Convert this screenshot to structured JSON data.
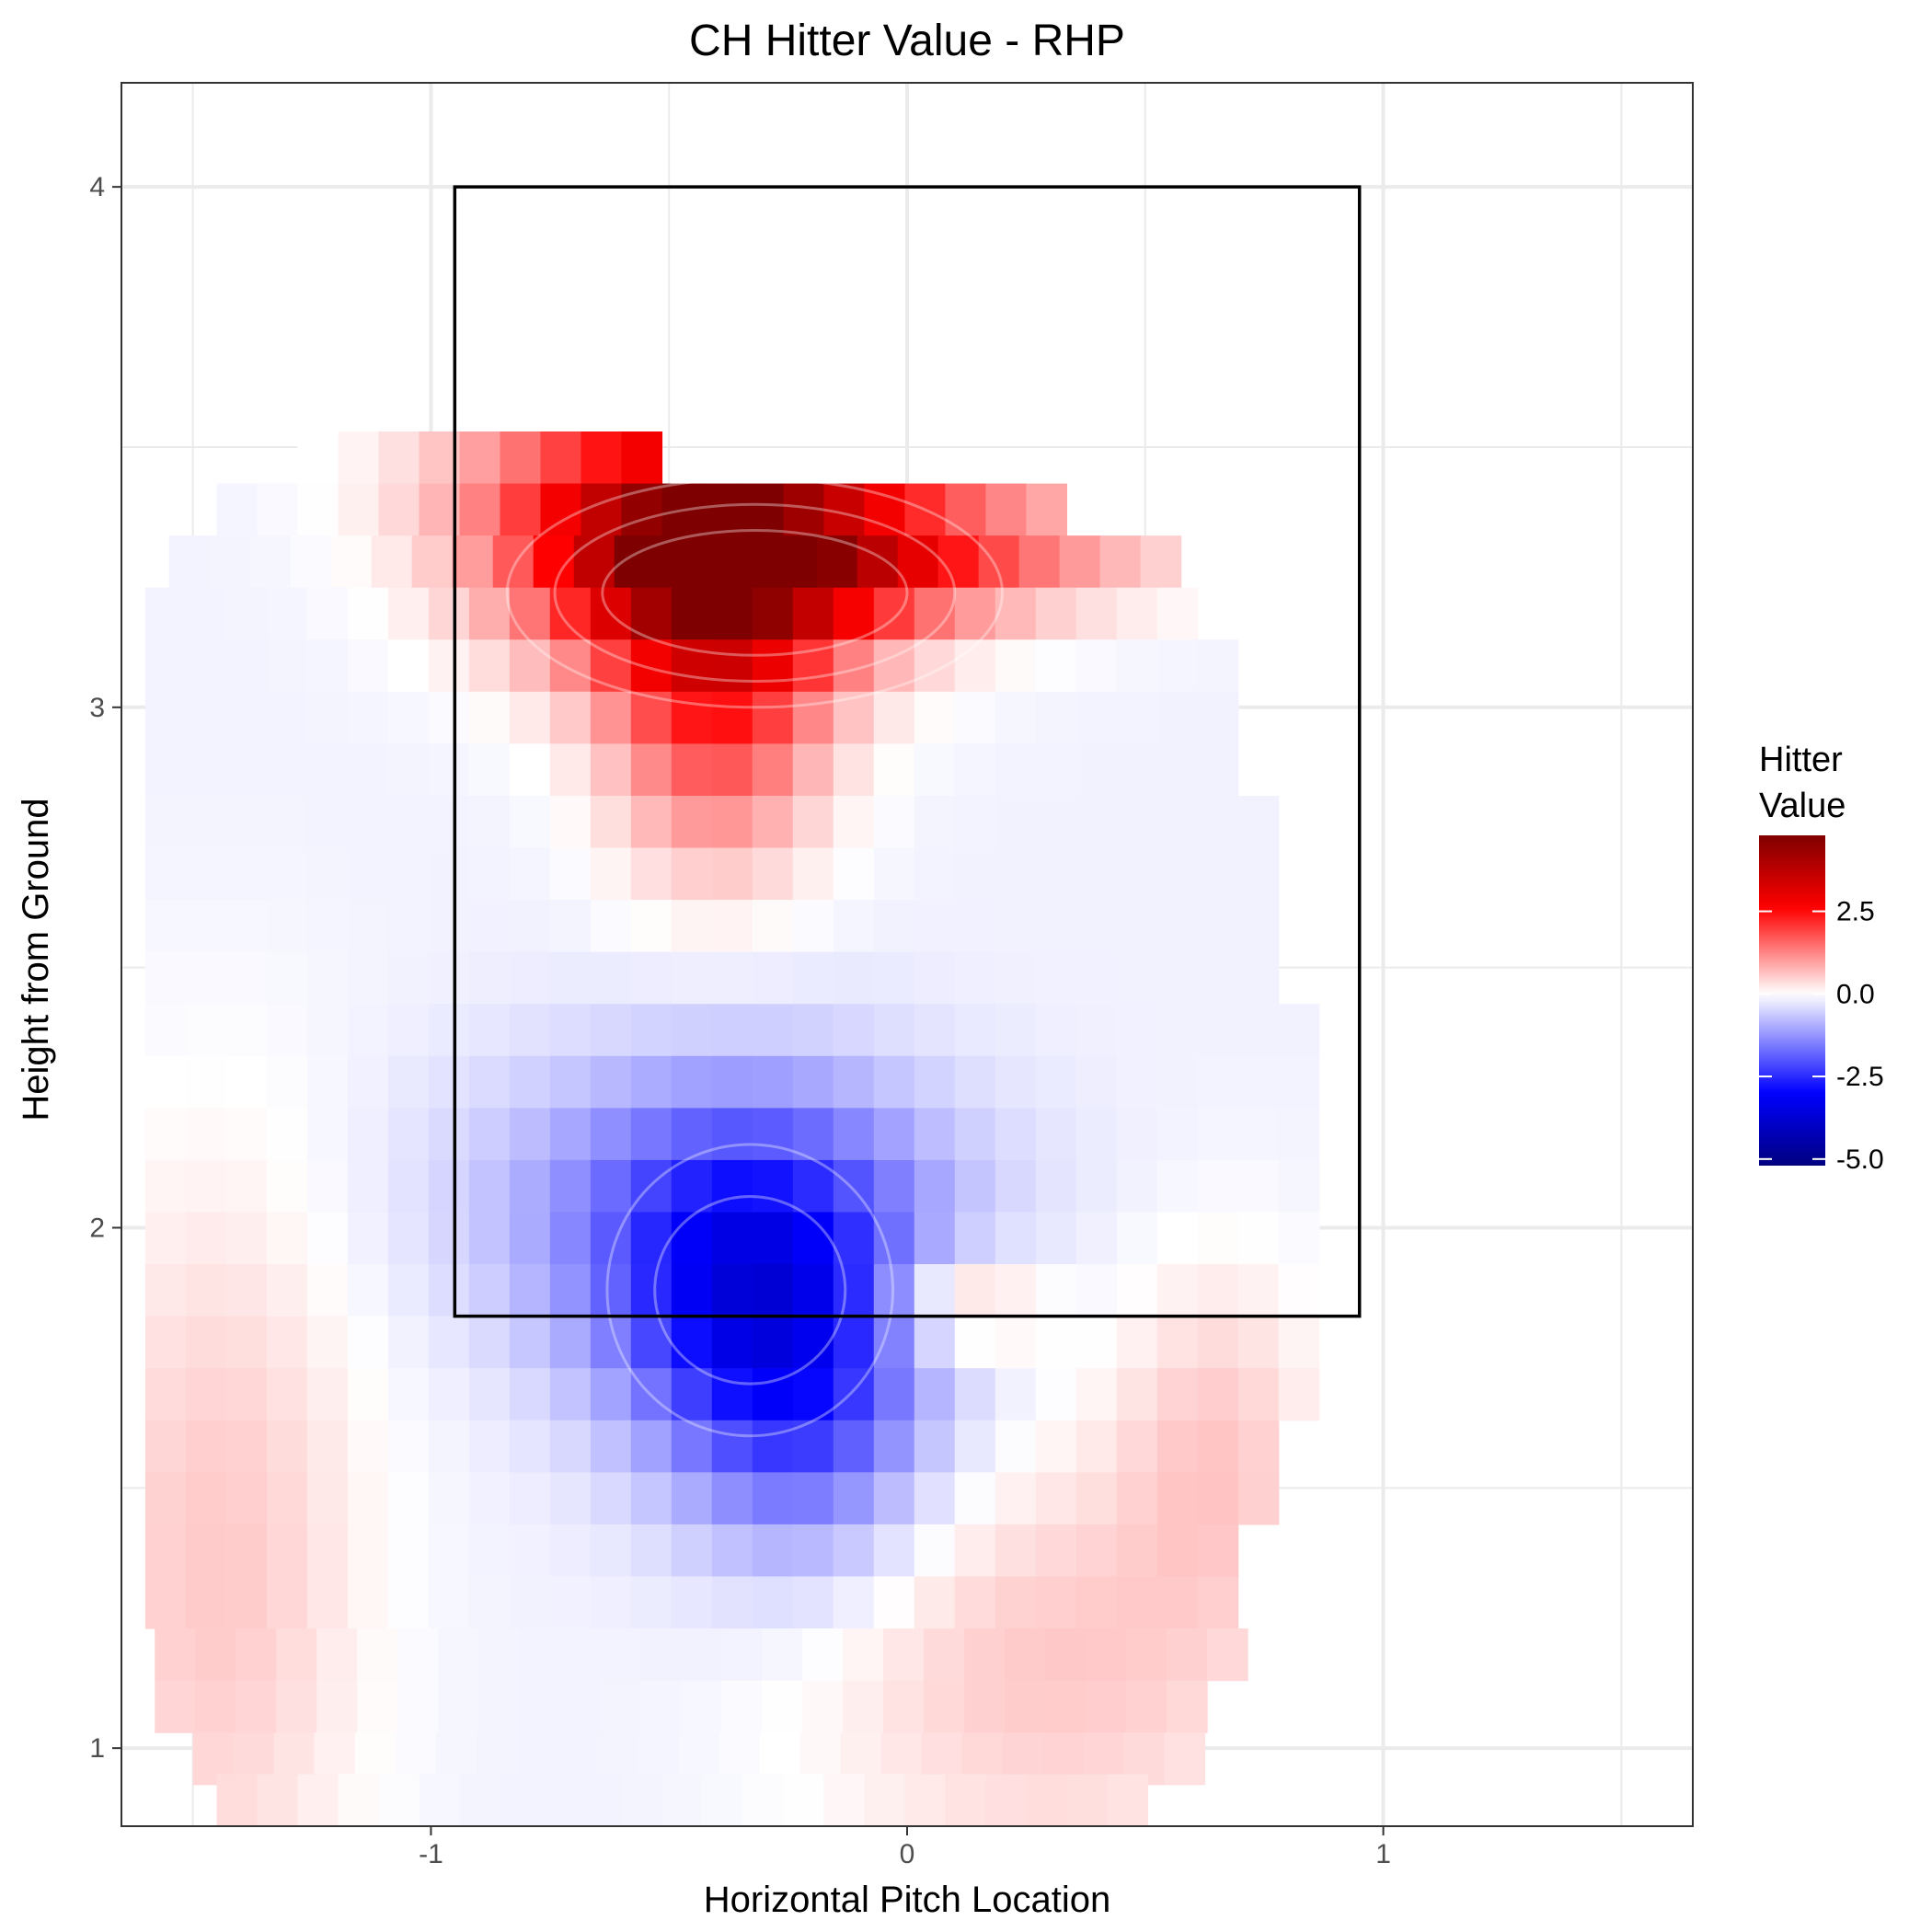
{
  "chart_data": {
    "type": "heatmap",
    "title": "CH Hitter Value - RHP",
    "xlabel": "Horizontal Pitch Location",
    "ylabel": "Height from Ground",
    "xlim": [
      -1.65,
      1.65
    ],
    "ylim": [
      0.85,
      4.2
    ],
    "x_ticks": [
      -1,
      0,
      1
    ],
    "y_ticks": [
      1,
      2,
      3,
      4
    ],
    "grid": true,
    "strike_zone": {
      "x": [
        -0.95,
        0.95
      ],
      "y": [
        1.83,
        4.0
      ]
    },
    "legend": {
      "title_lines": [
        "Hitter",
        "Value"
      ],
      "placement": "right",
      "ticks": [
        2.5,
        0.0,
        -2.5,
        -5.0
      ],
      "tick_labels": [
        "2.5",
        "0.0",
        "-2.5",
        "-5.0"
      ],
      "min": -5.2,
      "max": 4.8
    },
    "color_scale": {
      "low": "#00007f",
      "mid_low": "#0000ff",
      "mid": "#ffffff",
      "mid_high": "#ff0000",
      "high": "#7f0000"
    },
    "hot_spots": [
      {
        "x": -0.42,
        "y": 3.28,
        "value": 3.8,
        "sx": 0.28,
        "sy": 0.16
      },
      {
        "x": -0.1,
        "y": 3.3,
        "value": 2.2,
        "sx": 0.4,
        "sy": 0.09
      },
      {
        "x": -0.4,
        "y": 3.0,
        "value": 2.0,
        "sx": 0.16,
        "sy": 0.22
      },
      {
        "x": -0.6,
        "y": 3.45,
        "value": 1.2,
        "sx": 0.3,
        "sy": 0.08
      },
      {
        "x": -0.32,
        "y": 1.85,
        "value": -2.4,
        "sx": 0.22,
        "sy": 0.22
      },
      {
        "x": -0.4,
        "y": 2.05,
        "value": -1.3,
        "sx": 0.35,
        "sy": 0.2
      },
      {
        "x": -0.2,
        "y": 1.6,
        "value": -1.2,
        "sx": 0.18,
        "sy": 0.2
      },
      {
        "x": 0.1,
        "y": 1.85,
        "value": 1.1,
        "sx": 0.12,
        "sy": 0.07
      },
      {
        "x": -1.45,
        "y": 1.35,
        "value": 0.7,
        "sx": 0.22,
        "sy": 0.55
      },
      {
        "x": 0.3,
        "y": 1.15,
        "value": 0.7,
        "sx": 0.35,
        "sy": 0.3
      },
      {
        "x": 0.65,
        "y": 1.6,
        "value": 0.6,
        "sx": 0.15,
        "sy": 0.25
      }
    ],
    "base_value": -0.15,
    "grid_resolution": {
      "dx": 0.085,
      "dy": 0.1
    },
    "coverage": {
      "rows": [
        {
          "y": 3.48,
          "x": [
            -1.28,
            -0.55
          ]
        },
        {
          "y": 3.38,
          "x": [
            -1.45,
            0.3
          ]
        },
        {
          "y": 3.28,
          "x": [
            -1.55,
            0.55
          ]
        },
        {
          "y": 3.18,
          "x": [
            -1.6,
            0.55
          ]
        },
        {
          "y": 3.08,
          "x": [
            -1.6,
            0.65
          ]
        },
        {
          "y": 2.98,
          "x": [
            -1.6,
            0.65
          ]
        },
        {
          "y": 2.88,
          "x": [
            -1.6,
            0.65
          ]
        },
        {
          "y": 2.78,
          "x": [
            -1.6,
            0.73
          ]
        },
        {
          "y": 2.68,
          "x": [
            -1.6,
            0.73
          ]
        },
        {
          "y": 2.58,
          "x": [
            -1.6,
            0.73
          ]
        },
        {
          "y": 2.48,
          "x": [
            -1.6,
            0.73
          ]
        },
        {
          "y": 2.38,
          "x": [
            -1.6,
            0.8
          ]
        },
        {
          "y": 2.28,
          "x": [
            -1.6,
            0.8
          ]
        },
        {
          "y": 2.18,
          "x": [
            -1.6,
            0.8
          ]
        },
        {
          "y": 2.08,
          "x": [
            -1.6,
            0.8
          ]
        },
        {
          "y": 1.98,
          "x": [
            -1.6,
            0.8
          ]
        },
        {
          "y": 1.88,
          "x": [
            -1.6,
            0.8
          ]
        },
        {
          "y": 1.78,
          "x": [
            -1.6,
            0.8
          ]
        },
        {
          "y": 1.68,
          "x": [
            -1.6,
            0.8
          ]
        },
        {
          "y": 1.58,
          "x": [
            -1.6,
            0.73
          ]
        },
        {
          "y": 1.48,
          "x": [
            -1.6,
            0.73
          ]
        },
        {
          "y": 1.38,
          "x": [
            -1.6,
            0.65
          ]
        },
        {
          "y": 1.28,
          "x": [
            -1.6,
            0.65
          ]
        },
        {
          "y": 1.18,
          "x": [
            -1.58,
            0.65
          ]
        },
        {
          "y": 1.08,
          "x": [
            -1.58,
            0.55
          ]
        },
        {
          "y": 0.98,
          "x": [
            -1.5,
            0.55
          ]
        },
        {
          "y": 0.9,
          "x": [
            -1.45,
            0.45
          ]
        }
      ]
    }
  }
}
